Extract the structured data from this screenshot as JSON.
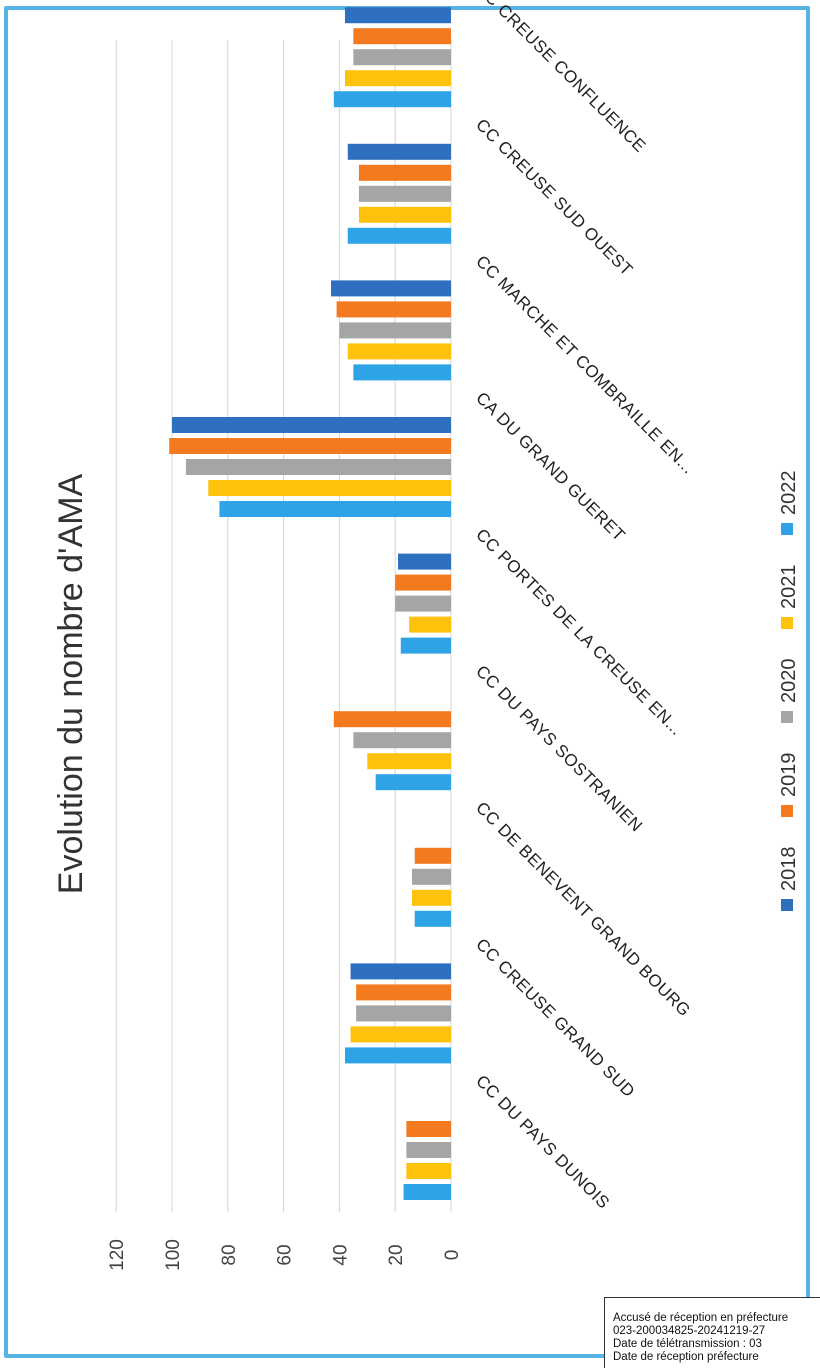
{
  "chart_data": {
    "type": "bar",
    "title": "Evolution du nombre d'AMA",
    "xlabel": "",
    "ylabel": "",
    "ylim": [
      0,
      120
    ],
    "yticks": [
      0,
      20,
      40,
      60,
      80,
      100,
      120
    ],
    "grid": true,
    "legend_position": "bottom",
    "categories": [
      "CC DU PAYS DUNOIS",
      "CC CREUSE GRAND SUD",
      "CC DE BENEVENT GRAND BOURG",
      "CC DU PAYS SOSTRANIEN",
      "CC PORTES DE LA CREUSE EN...",
      "CA DU GRAND GUERET",
      "CC MARCHE ET COMBRAILLE EN...",
      "CC CREUSE SUD OUEST",
      "CC CREUSE CONFLUENCE"
    ],
    "series": [
      {
        "name": "2018",
        "color": "#2e6fc0",
        "values": [
          null,
          36,
          null,
          null,
          19,
          100,
          43,
          37,
          38
        ]
      },
      {
        "name": "2019",
        "color": "#f47a20",
        "values": [
          16,
          34,
          13,
          42,
          20,
          101,
          41,
          33,
          35
        ]
      },
      {
        "name": "2020",
        "color": "#a5a5a5",
        "values": [
          16,
          34,
          14,
          35,
          20,
          95,
          40,
          33,
          35
        ]
      },
      {
        "name": "2021",
        "color": "#fec20d",
        "values": [
          16,
          36,
          14,
          30,
          15,
          87,
          37,
          33,
          38
        ]
      },
      {
        "name": "2022",
        "color": "#2ea4e6",
        "values": [
          17,
          38,
          13,
          27,
          18,
          83,
          35,
          37,
          42
        ]
      }
    ]
  },
  "stamp": {
    "line1": "Accusé de réception en préfecture",
    "line2": "023-200034825-20241219-27",
    "line3": "Date de télétransmission : 03",
    "line4": "Date de réception préfecture"
  }
}
